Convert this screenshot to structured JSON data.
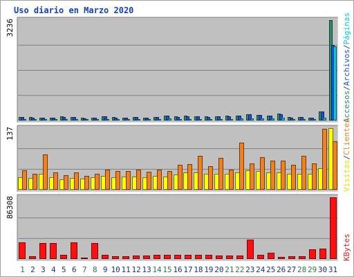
{
  "chart_data": {
    "type": "bar",
    "title": "Uso diario en Marzo 2020",
    "categories": [
      "1",
      "2",
      "3",
      "4",
      "5",
      "6",
      "7",
      "8",
      "9",
      "10",
      "11",
      "12",
      "13",
      "14",
      "15",
      "16",
      "17",
      "18",
      "19",
      "20",
      "21",
      "22",
      "23",
      "24",
      "25",
      "26",
      "27",
      "28",
      "29",
      "30",
      "31"
    ],
    "weekend_days": [
      "1",
      "7",
      "8",
      "14",
      "15",
      "21",
      "22",
      "28",
      "29"
    ],
    "panels": [
      {
        "name": "accesses",
        "ymax_label": "3236",
        "ylim": [
          0,
          3236
        ],
        "legend": [
          {
            "text": "Accesos",
            "color": "#2c8c6c"
          },
          {
            "text": "/",
            "color": "#404040"
          },
          {
            "text": "Archivos",
            "color": "#2050d0"
          },
          {
            "text": "/",
            "color": "#404040"
          },
          {
            "text": "Páginas",
            "color": "#00c8ee"
          }
        ],
        "series": [
          {
            "name": "Accesos",
            "color": "#2c8c6c",
            "values": [
              120,
              110,
              100,
              90,
              130,
              115,
              80,
              95,
              140,
              110,
              100,
              120,
              90,
              110,
              160,
              130,
              150,
              140,
              130,
              140,
              150,
              160,
              200,
              180,
              160,
              220,
              110,
              120,
              100,
              290,
              3236
            ]
          },
          {
            "name": "Archivos",
            "color": "#2050d0",
            "values": [
              110,
              100,
              95,
              85,
              120,
              110,
              75,
              90,
              130,
              100,
              95,
              115,
              85,
              105,
              150,
              120,
              140,
              130,
              120,
              130,
              140,
              150,
              190,
              170,
              150,
              210,
              100,
              110,
              95,
              280,
              2440
            ]
          },
          {
            "name": "Páginas",
            "color": "#00c8ee",
            "values": [
              40,
              35,
              30,
              30,
              45,
              40,
              25,
              30,
              50,
              40,
              35,
              40,
              30,
              40,
              60,
              50,
              55,
              50,
              45,
              50,
              55,
              60,
              70,
              65,
              60,
              80,
              40,
              45,
              35,
              95,
              2380
            ]
          }
        ]
      },
      {
        "name": "visitors",
        "ymax_label": "137",
        "ylim": [
          0,
          137
        ],
        "legend": [
          {
            "text": "Visitas",
            "color": "#e8e000"
          },
          {
            "text": "/",
            "color": "#404040"
          },
          {
            "text": "Clientes",
            "color": "#f08020"
          }
        ],
        "series": [
          {
            "name": "Visitas",
            "color": "#ffff00",
            "values": [
              28,
              26,
              35,
              27,
              23,
              26,
              25,
              28,
              31,
              28,
              29,
              30,
              28,
              31,
              30,
              34,
              38,
              38,
              36,
              35,
              36,
              39,
              43,
              41,
              38,
              39,
              36,
              36,
              35,
              48,
              137
            ]
          },
          {
            "name": "Clientes",
            "color": "#f08020",
            "values": [
              43,
              36,
              78,
              38,
              33,
              39,
              31,
              36,
              45,
              41,
              42,
              44,
              40,
              45,
              42,
              55,
              57,
              76,
              52,
              71,
              45,
              105,
              58,
              73,
              64,
              64,
              56,
              75,
              58,
              135,
              108
            ]
          }
        ]
      },
      {
        "name": "kbytes",
        "ymax_label": "86308",
        "ylim": [
          0,
          86308
        ],
        "legend": [
          {
            "text": "KBytes",
            "color": "#e02020"
          }
        ],
        "series": [
          {
            "name": "KBytes",
            "color": "#ff1010",
            "values": [
              23500,
              3500,
              22700,
              22700,
              5500,
              23700,
              1500,
              22600,
              5500,
              4000,
              3500,
              4500,
              4500,
              5500,
              5500,
              5500,
              6000,
              5500,
              6000,
              5000,
              5000,
              4500,
              27000,
              5500,
              8500,
              3000,
              4000,
              4000,
              13500,
              14500,
              86308
            ]
          }
        ]
      }
    ]
  }
}
